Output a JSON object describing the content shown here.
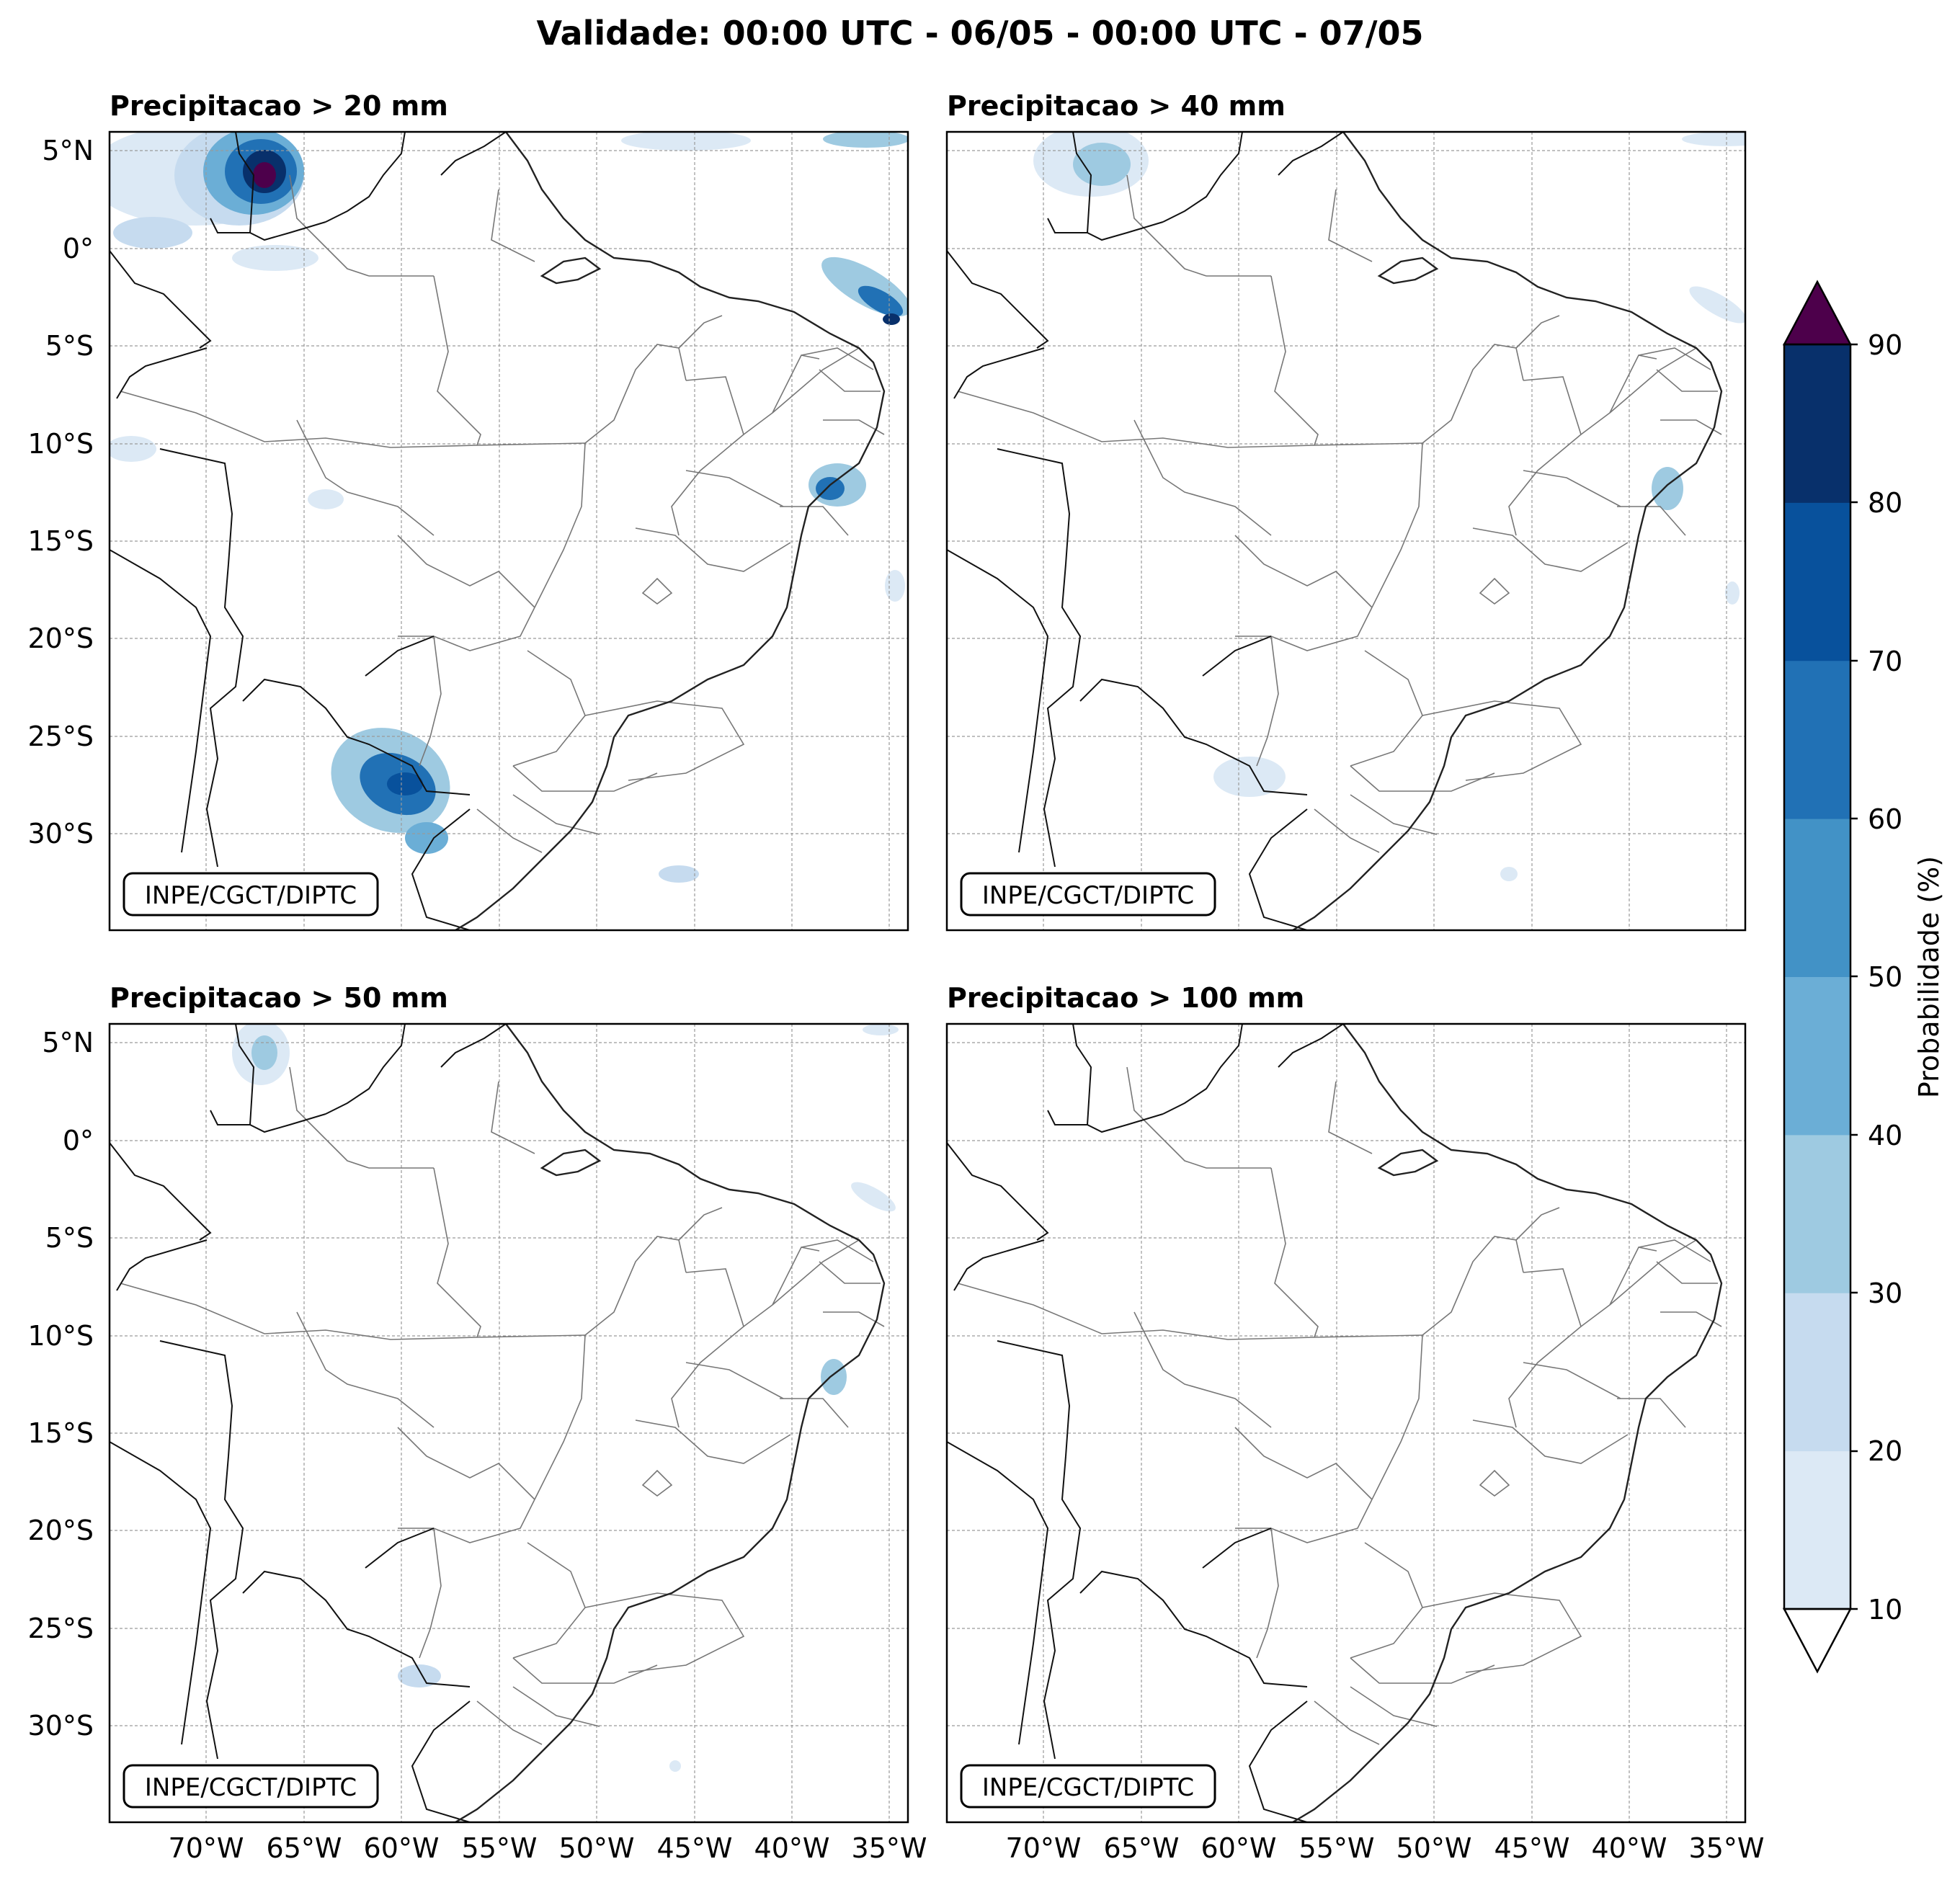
{
  "figure": {
    "title": "Validade: 00:00 UTC - 06/05 - 00:00 UTC - 07/05",
    "watermark": "INPE/CGCT/DIPTC"
  },
  "panels": [
    {
      "id": "p20",
      "title": "Precipitacao > 20 mm"
    },
    {
      "id": "p40",
      "title": "Precipitacao > 40 mm"
    },
    {
      "id": "p50",
      "title": "Precipitacao > 50 mm"
    },
    {
      "id": "p100",
      "title": "Precipitacao > 100 mm"
    }
  ],
  "axes": {
    "lat_ticks": [
      "5°N",
      "0°",
      "5°S",
      "10°S",
      "15°S",
      "20°S",
      "25°S",
      "30°S"
    ],
    "lon_ticks": [
      "70°W",
      "65°W",
      "60°W",
      "55°W",
      "50°W",
      "45°W",
      "40°W",
      "35°W"
    ]
  },
  "colorbar": {
    "label": "Probabilidade (%)",
    "ticks": [
      "10",
      "20",
      "30",
      "40",
      "50",
      "60",
      "70",
      "80",
      "90"
    ],
    "colors": [
      "#dce9f5",
      "#c6dbef",
      "#9ecae1",
      "#6baed6",
      "#4292c6",
      "#2171b5",
      "#08519c",
      "#08306b"
    ],
    "over_color": "#4d004b",
    "under_color": "#ffffff"
  }
}
